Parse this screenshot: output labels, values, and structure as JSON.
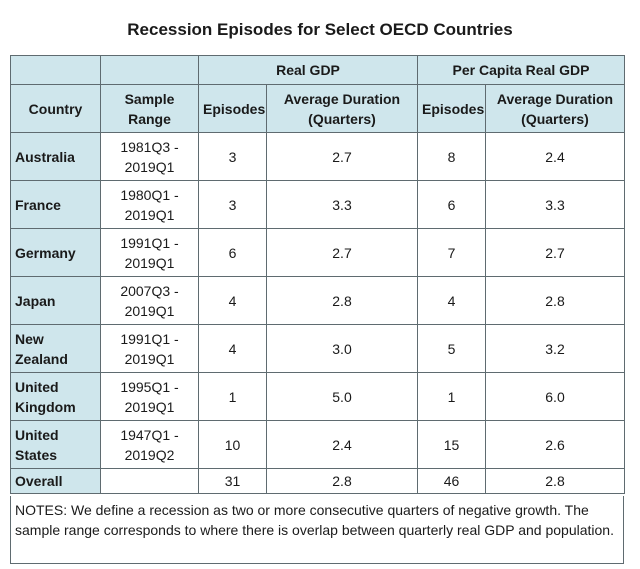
{
  "title": "Recession Episodes for Select OECD Countries",
  "group_headers": {
    "real_gdp": "Real GDP",
    "per_capita": "Per Capita Real GDP"
  },
  "column_headers": {
    "country": "Country",
    "sample_range": "Sample Range",
    "real_gdp_episodes": "Episodes",
    "real_gdp_duration": "Average Duration (Quarters)",
    "pc_episodes": "Episodes",
    "pc_duration": "Average Duration (Quarters)"
  },
  "rows": [
    {
      "country": "Australia",
      "range_start": "1981Q3 -",
      "range_end": "2019Q1",
      "gdp_episodes": "3",
      "gdp_duration": "2.7",
      "pc_episodes": "8",
      "pc_duration": "2.4"
    },
    {
      "country": "France",
      "range_start": "1980Q1 -",
      "range_end": "2019Q1",
      "gdp_episodes": "3",
      "gdp_duration": "3.3",
      "pc_episodes": "6",
      "pc_duration": "3.3"
    },
    {
      "country": "Germany",
      "range_start": "1991Q1 -",
      "range_end": "2019Q1",
      "gdp_episodes": "6",
      "gdp_duration": "2.7",
      "pc_episodes": "7",
      "pc_duration": "2.7"
    },
    {
      "country": "Japan",
      "range_start": "2007Q3 -",
      "range_end": "2019Q1",
      "gdp_episodes": "4",
      "gdp_duration": "2.8",
      "pc_episodes": "4",
      "pc_duration": "2.8"
    },
    {
      "country": "New Zealand",
      "range_start": "1991Q1 -",
      "range_end": "2019Q1",
      "gdp_episodes": "4",
      "gdp_duration": "3.0",
      "pc_episodes": "5",
      "pc_duration": "3.2"
    },
    {
      "country": "United Kingdom",
      "range_start": "1995Q1 -",
      "range_end": "2019Q1",
      "gdp_episodes": "1",
      "gdp_duration": "5.0",
      "pc_episodes": "1",
      "pc_duration": "6.0"
    },
    {
      "country": "United States",
      "range_start": "1947Q1 -",
      "range_end": "2019Q2",
      "gdp_episodes": "10",
      "gdp_duration": "2.4",
      "pc_episodes": "15",
      "pc_duration": "2.6"
    }
  ],
  "overall": {
    "label": "Overall",
    "range": "",
    "gdp_episodes": "31",
    "gdp_duration": "2.8",
    "pc_episodes": "46",
    "pc_duration": "2.8"
  },
  "notes": "NOTES: We define a recession as two or more consecutive quarters of negative growth. The sample range corresponds to where there is overlap between quarterly real GDP and population.",
  "colors": {
    "header_fill": "#cfe6ec",
    "border": "#5f6b70"
  }
}
